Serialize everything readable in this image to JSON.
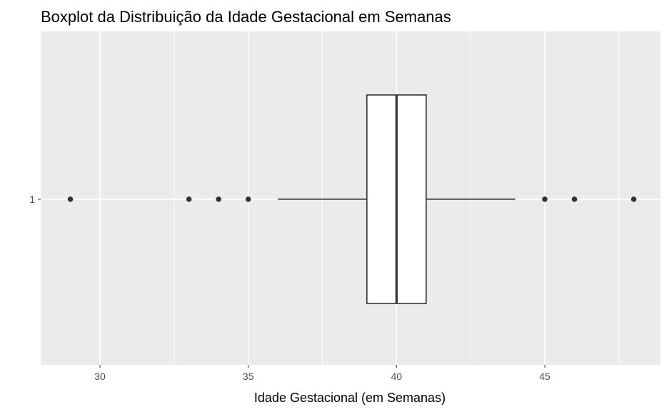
{
  "chart_data": {
    "type": "boxplot",
    "title": "Boxplot da Distribuição da Idade Gestacional em Semanas",
    "xlabel": "Idade Gestacional (em Semanas)",
    "ylabel": "",
    "xlim": [
      28,
      48.9
    ],
    "grid": true,
    "x_ticks": [
      30,
      35,
      40,
      45
    ],
    "y_categories": [
      "1"
    ],
    "boxes": [
      {
        "category": "1",
        "whisker_low": 36,
        "q1": 39,
        "median": 40,
        "q3": 41,
        "whisker_high": 44,
        "outliers": [
          29,
          33,
          34,
          35,
          45,
          46,
          48
        ]
      }
    ],
    "colors": {
      "panel": "#ebebeb",
      "grid": "#ffffff",
      "box_fill": "#ffffff",
      "box_stroke": "#333333",
      "point": "#333333"
    }
  }
}
